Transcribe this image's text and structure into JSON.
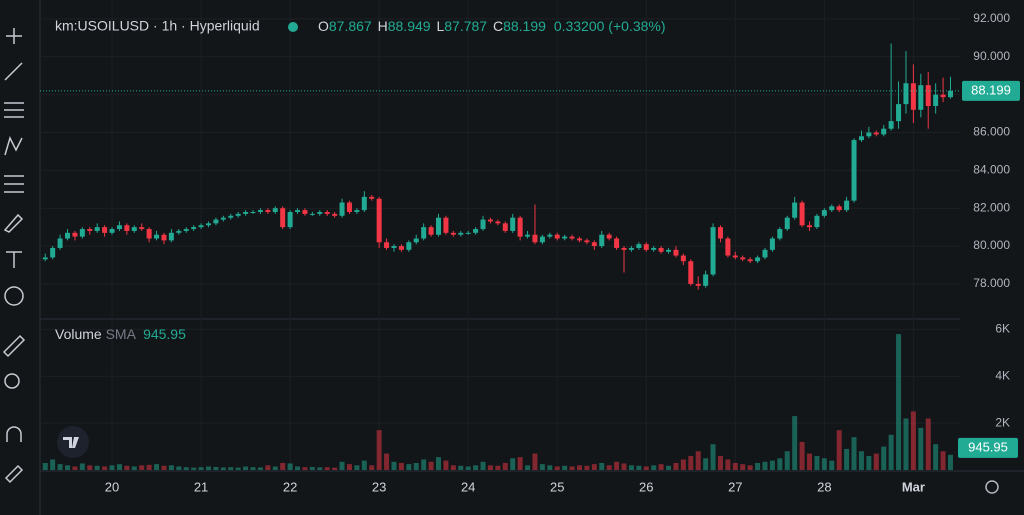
{
  "header": {
    "symbol": "km:USOILUSD · 1h · Hyperliquid",
    "ohlc": [
      {
        "key": "O",
        "value": 87.867
      },
      {
        "key": "H",
        "value": 88.949
      },
      {
        "key": "L",
        "value": 87.787
      },
      {
        "key": "C",
        "value": 88.199
      }
    ],
    "change": "0.33200 (+0.38%)"
  },
  "chart_data": {
    "type": "candlestick",
    "categories": [
      null,
      null,
      null,
      null,
      null,
      null,
      null,
      null,
      null,
      "20",
      null,
      null,
      null,
      null,
      null,
      null,
      null,
      null,
      null,
      null,
      null,
      "21",
      null,
      null,
      null,
      null,
      null,
      null,
      null,
      null,
      null,
      null,
      null,
      "22",
      null,
      null,
      null,
      null,
      null,
      null,
      null,
      null,
      null,
      null,
      null,
      "23",
      null,
      null,
      null,
      null,
      null,
      null,
      null,
      null,
      null,
      null,
      null,
      "24",
      null,
      null,
      null,
      null,
      null,
      null,
      null,
      null,
      null,
      null,
      null,
      "25",
      null,
      null,
      null,
      null,
      null,
      null,
      null,
      null,
      null,
      null,
      null,
      "26",
      null,
      null,
      null,
      null,
      null,
      null,
      null,
      null,
      null,
      null,
      null,
      "27",
      null,
      null,
      null,
      null,
      null,
      null,
      null,
      null,
      null,
      null,
      null,
      "28",
      null,
      null,
      null,
      null,
      null,
      null,
      null,
      null,
      null,
      null,
      null,
      "Mar",
      null,
      null,
      null,
      null,
      null
    ],
    "ohlc": [
      [
        79.3,
        79.6,
        79.2,
        79.4
      ],
      [
        79.4,
        80.0,
        79.3,
        79.9
      ],
      [
        79.9,
        80.6,
        79.8,
        80.4
      ],
      [
        80.4,
        80.9,
        80.3,
        80.7
      ],
      [
        80.7,
        80.8,
        80.3,
        80.5
      ],
      [
        80.5,
        81.0,
        80.4,
        80.9
      ],
      [
        80.9,
        81.0,
        80.6,
        80.8
      ],
      [
        80.8,
        81.2,
        80.7,
        81.0
      ],
      [
        81.0,
        81.1,
        80.5,
        80.7
      ],
      [
        80.7,
        81.0,
        80.6,
        80.9
      ],
      [
        80.9,
        81.3,
        80.8,
        81.1
      ],
      [
        81.1,
        81.2,
        80.6,
        80.8
      ],
      [
        80.8,
        81.1,
        80.7,
        81.0
      ],
      [
        81.0,
        81.2,
        80.8,
        80.9
      ],
      [
        80.9,
        81.0,
        80.2,
        80.4
      ],
      [
        80.4,
        80.8,
        80.3,
        80.6
      ],
      [
        80.6,
        80.7,
        80.1,
        80.3
      ],
      [
        80.3,
        80.9,
        80.2,
        80.7
      ],
      [
        80.7,
        80.9,
        80.6,
        80.8
      ],
      [
        80.8,
        81.0,
        80.7,
        80.9
      ],
      [
        80.9,
        81.1,
        80.8,
        81.0
      ],
      [
        81.0,
        81.2,
        80.9,
        81.1
      ],
      [
        81.1,
        81.3,
        81.0,
        81.2
      ],
      [
        81.2,
        81.5,
        81.1,
        81.4
      ],
      [
        81.4,
        81.6,
        81.3,
        81.5
      ],
      [
        81.5,
        81.7,
        81.4,
        81.6
      ],
      [
        81.6,
        81.8,
        81.5,
        81.7
      ],
      [
        81.7,
        81.9,
        81.6,
        81.8
      ],
      [
        81.8,
        81.9,
        81.7,
        81.8
      ],
      [
        81.8,
        82.0,
        81.7,
        81.9
      ],
      [
        81.9,
        82.0,
        81.7,
        81.8
      ],
      [
        81.8,
        82.1,
        81.7,
        82.0
      ],
      [
        82.0,
        82.1,
        80.9,
        81.0
      ],
      [
        81.0,
        81.9,
        80.9,
        81.8
      ],
      [
        81.8,
        82.0,
        81.7,
        81.9
      ],
      [
        81.9,
        82.0,
        81.6,
        81.7
      ],
      [
        81.7,
        81.8,
        81.6,
        81.7
      ],
      [
        81.7,
        81.9,
        81.6,
        81.8
      ],
      [
        81.8,
        81.9,
        81.6,
        81.7
      ],
      [
        81.7,
        81.8,
        81.5,
        81.6
      ],
      [
        81.6,
        82.5,
        81.5,
        82.3
      ],
      [
        82.3,
        82.4,
        81.7,
        81.8
      ],
      [
        81.8,
        82.0,
        81.7,
        81.9
      ],
      [
        81.9,
        82.9,
        81.8,
        82.6
      ],
      [
        82.6,
        82.7,
        82.4,
        82.5
      ],
      [
        82.5,
        82.6,
        79.9,
        80.2
      ],
      [
        80.2,
        80.4,
        79.8,
        79.9
      ],
      [
        79.9,
        80.1,
        79.7,
        80.0
      ],
      [
        80.0,
        80.1,
        79.7,
        79.8
      ],
      [
        79.8,
        80.3,
        79.7,
        80.2
      ],
      [
        80.2,
        80.6,
        80.1,
        80.4
      ],
      [
        80.4,
        81.2,
        80.3,
        81.0
      ],
      [
        81.0,
        81.1,
        80.5,
        80.6
      ],
      [
        80.6,
        81.7,
        80.5,
        81.5
      ],
      [
        81.5,
        81.6,
        80.6,
        80.7
      ],
      [
        80.7,
        80.8,
        80.5,
        80.6
      ],
      [
        80.6,
        80.8,
        80.5,
        80.7
      ],
      [
        80.7,
        80.8,
        80.6,
        80.7
      ],
      [
        80.7,
        81.0,
        80.6,
        80.9
      ],
      [
        80.9,
        81.6,
        80.8,
        81.4
      ],
      [
        81.4,
        81.5,
        81.2,
        81.3
      ],
      [
        81.3,
        81.4,
        81.1,
        81.2
      ],
      [
        81.2,
        81.3,
        80.7,
        80.8
      ],
      [
        80.8,
        81.7,
        80.7,
        81.5
      ],
      [
        81.5,
        81.6,
        80.3,
        80.5
      ],
      [
        80.5,
        80.8,
        80.4,
        80.6
      ],
      [
        80.6,
        82.2,
        80.1,
        80.2
      ],
      [
        80.2,
        80.6,
        80.1,
        80.5
      ],
      [
        80.5,
        80.7,
        80.4,
        80.6
      ],
      [
        80.6,
        80.7,
        80.3,
        80.4
      ],
      [
        80.4,
        80.6,
        80.3,
        80.5
      ],
      [
        80.5,
        80.6,
        80.3,
        80.4
      ],
      [
        80.4,
        80.5,
        80.2,
        80.3
      ],
      [
        80.3,
        80.4,
        80.1,
        80.2
      ],
      [
        80.2,
        80.3,
        79.8,
        80.0
      ],
      [
        80.0,
        80.8,
        79.9,
        80.6
      ],
      [
        80.6,
        80.7,
        80.3,
        80.4
      ],
      [
        80.4,
        80.5,
        79.8,
        79.9
      ],
      [
        79.9,
        80.0,
        78.6,
        79.8
      ],
      [
        79.8,
        80.0,
        79.7,
        79.9
      ],
      [
        79.9,
        80.2,
        79.8,
        80.1
      ],
      [
        80.1,
        80.2,
        79.7,
        79.8
      ],
      [
        79.8,
        80.0,
        79.7,
        79.9
      ],
      [
        79.9,
        80.0,
        79.6,
        79.7
      ],
      [
        79.7,
        79.9,
        79.6,
        79.8
      ],
      [
        79.8,
        80.0,
        79.4,
        79.5
      ],
      [
        79.5,
        79.6,
        79.0,
        79.2
      ],
      [
        79.2,
        79.3,
        77.9,
        78.0
      ],
      [
        78.0,
        78.4,
        77.7,
        77.9
      ],
      [
        77.9,
        78.7,
        77.8,
        78.5
      ],
      [
        78.5,
        81.2,
        78.4,
        81.0
      ],
      [
        81.0,
        81.1,
        80.2,
        80.4
      ],
      [
        80.4,
        80.5,
        79.4,
        79.5
      ],
      [
        79.5,
        79.7,
        79.3,
        79.4
      ],
      [
        79.4,
        79.5,
        79.2,
        79.3
      ],
      [
        79.3,
        79.4,
        79.1,
        79.2
      ],
      [
        79.2,
        79.5,
        79.1,
        79.4
      ],
      [
        79.4,
        79.9,
        79.3,
        79.8
      ],
      [
        79.8,
        80.5,
        79.7,
        80.4
      ],
      [
        80.4,
        81.0,
        80.3,
        80.9
      ],
      [
        80.9,
        81.6,
        80.8,
        81.5
      ],
      [
        81.5,
        82.6,
        81.4,
        82.3
      ],
      [
        82.3,
        82.4,
        81.0,
        81.1
      ],
      [
        81.1,
        81.3,
        80.8,
        81.0
      ],
      [
        81.0,
        81.7,
        80.9,
        81.6
      ],
      [
        81.6,
        82.0,
        81.5,
        81.9
      ],
      [
        81.9,
        82.2,
        81.8,
        82.1
      ],
      [
        82.1,
        82.2,
        81.8,
        81.9
      ],
      [
        81.9,
        82.6,
        81.8,
        82.4
      ],
      [
        82.4,
        85.7,
        82.3,
        85.6
      ],
      [
        85.6,
        86.1,
        85.5,
        85.8
      ],
      [
        85.8,
        86.3,
        85.7,
        86.0
      ],
      [
        86.0,
        86.1,
        85.8,
        85.9
      ],
      [
        85.9,
        86.4,
        85.8,
        86.2
      ],
      [
        86.2,
        90.7,
        86.1,
        86.6
      ],
      [
        86.6,
        88.7,
        86.2,
        87.5
      ],
      [
        87.5,
        90.3,
        87.0,
        88.6
      ],
      [
        88.6,
        89.6,
        86.5,
        87.2
      ],
      [
        87.2,
        89.1,
        86.8,
        88.5
      ],
      [
        88.5,
        89.2,
        86.2,
        87.4
      ],
      [
        87.4,
        88.6,
        87.0,
        88.0
      ],
      [
        88.0,
        88.9,
        87.6,
        87.867
      ],
      [
        87.867,
        88.949,
        87.787,
        88.199
      ]
    ],
    "up_color": "#22ab94",
    "down_color": "#f23645",
    "ylim": [
      76.2,
      93.0
    ],
    "yticks": [
      {
        "value": 78,
        "label": "78.000"
      },
      {
        "value": 80,
        "label": "80.000"
      },
      {
        "value": 82,
        "label": "82.000"
      },
      {
        "value": 84,
        "label": "84.000"
      },
      {
        "value": 86,
        "label": "86.000"
      },
      {
        "value": 88,
        "label": "88.000"
      },
      {
        "value": 90,
        "label": "90.000"
      },
      {
        "value": 92,
        "label": "92.000"
      }
    ],
    "grid": true,
    "last_price": 88.199,
    "volume": {
      "title": "Volume",
      "indicator": "SMA",
      "sma": 945.95,
      "values": [
        300,
        450,
        250,
        200,
        150,
        280,
        200,
        180,
        150,
        200,
        250,
        180,
        150,
        200,
        220,
        250,
        180,
        200,
        150,
        120,
        100,
        120,
        150,
        130,
        110,
        120,
        100,
        150,
        120,
        110,
        200,
        150,
        300,
        280,
        150,
        120,
        130,
        110,
        120,
        100,
        350,
        250,
        200,
        400,
        200,
        1700,
        700,
        350,
        300,
        250,
        300,
        450,
        350,
        550,
        400,
        200,
        180,
        150,
        200,
        350,
        200,
        180,
        300,
        500,
        550,
        200,
        700,
        250,
        200,
        150,
        180,
        150,
        200,
        180,
        250,
        300,
        200,
        350,
        280,
        200,
        180,
        150,
        200,
        250,
        180,
        300,
        450,
        600,
        800,
        500,
        1100,
        600,
        450,
        300,
        250,
        200,
        300,
        350,
        400,
        500,
        800,
        2300,
        1200,
        700,
        600,
        500,
        400,
        1700,
        900,
        1400,
        800,
        600,
        700,
        1000,
        1500,
        5800,
        2200,
        2500,
        1800,
        2200,
        1100,
        800,
        650
      ],
      "ylim": [
        0,
        6400
      ],
      "yticks": [
        {
          "value": 2000,
          "label": "2K"
        },
        {
          "value": 4000,
          "label": "4K"
        },
        {
          "value": 6000,
          "label": "6K"
        }
      ]
    }
  }
}
